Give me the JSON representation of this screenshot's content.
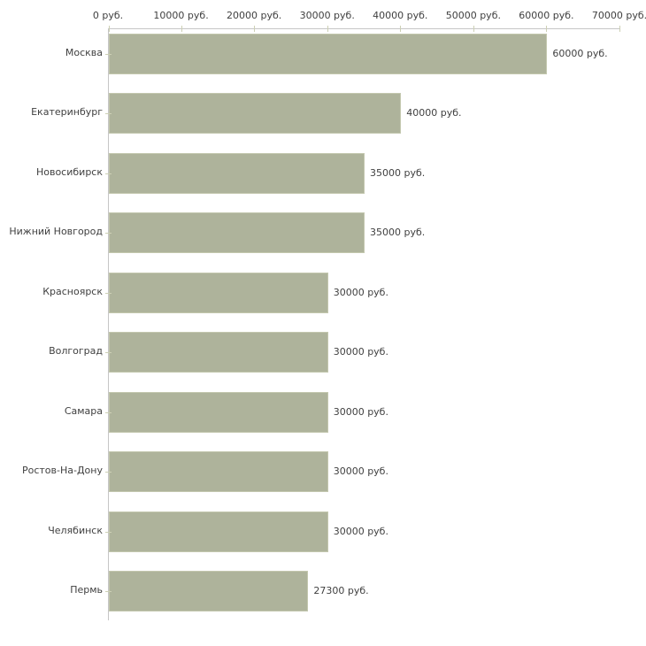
{
  "chart_data": {
    "type": "bar",
    "orientation": "horizontal",
    "title": "",
    "categories": [
      "Москва",
      "Екатеринбург",
      "Новосибирск",
      "Нижний Новгород",
      "Красноярск",
      "Волгоград",
      "Самара",
      "Ростов-На-Дону",
      "Челябинск",
      "Пермь"
    ],
    "values": [
      60000,
      40000,
      35000,
      35000,
      30000,
      30000,
      30000,
      30000,
      30000,
      27300
    ],
    "value_labels": [
      "60000 руб.",
      "40000 руб.",
      "35000 руб.",
      "35000 руб.",
      "30000 руб.",
      "30000 руб.",
      "30000 руб.",
      "30000 руб.",
      "30000 руб.",
      "27300 руб."
    ],
    "x_axis": {
      "position": "top",
      "range": [
        0,
        70000
      ],
      "unit": "руб.",
      "ticks": [
        0,
        10000,
        20000,
        30000,
        40000,
        50000,
        60000,
        70000
      ],
      "tick_labels": [
        "0 руб.",
        "10000 руб.",
        "20000 руб.",
        "30000 руб.",
        "40000 руб.",
        "50000 руб.",
        "60000 руб.",
        "70000 руб."
      ]
    },
    "grid": false,
    "legend": false,
    "colors": {
      "bar_fill": "#aeb39b",
      "bar_border": "#c3c7ae",
      "axis_line": "#c6c6c6",
      "tick_mark": "#cdd0b5",
      "text": "#404040"
    }
  }
}
